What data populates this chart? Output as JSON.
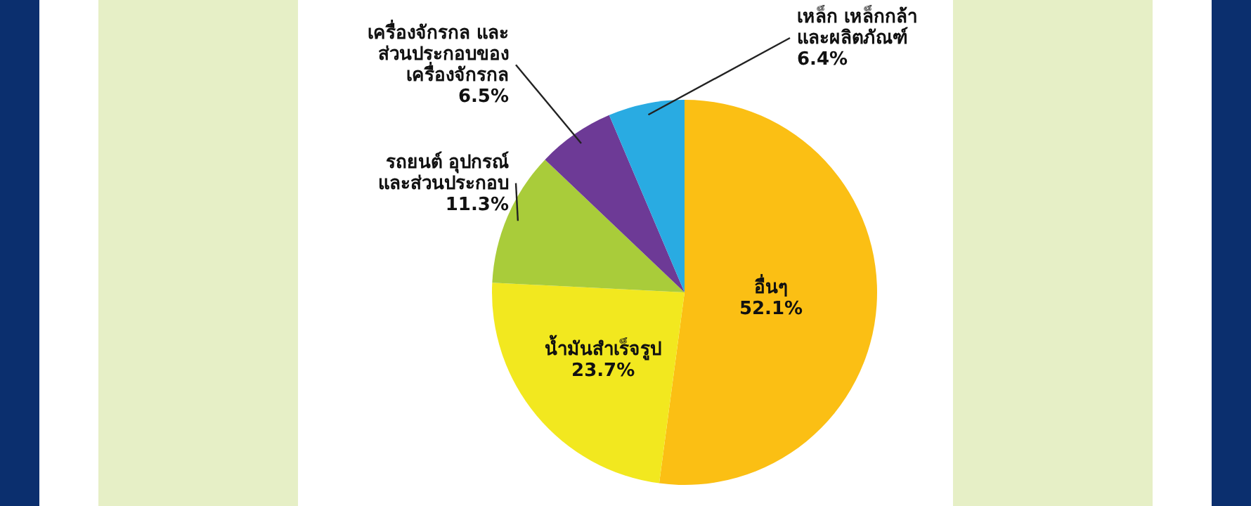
{
  "chart_data": {
    "type": "pie",
    "categories": [
      "อื่นๆ",
      "น้ำมันสำเร็จรูป",
      "รถยนต์ อุปกรณ์\nและส่วนประกอบ",
      "เครื่องจักรกล และ\nส่วนประกอบของ\nเครื่องจักรกล",
      "เหล็ก เหล็กกล้า\nและผลิตภัณฑ์"
    ],
    "values": [
      52.1,
      23.7,
      11.3,
      6.5,
      6.4
    ],
    "colors": [
      "#fbbf14",
      "#f2e81f",
      "#a9cc3a",
      "#6d3a96",
      "#29abe2"
    ],
    "value_labels": [
      "52.1%",
      "23.7%",
      "11.3%",
      "6.5%",
      "6.4%"
    ]
  }
}
